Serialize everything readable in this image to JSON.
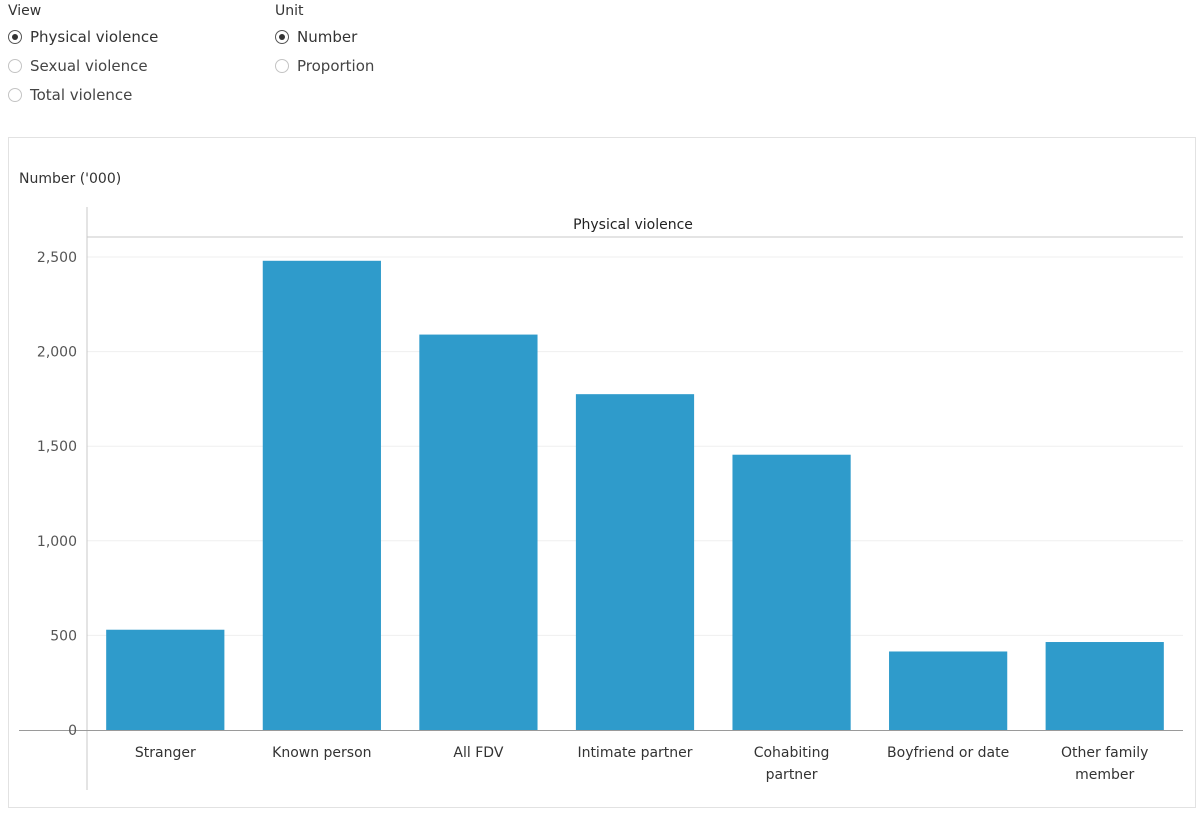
{
  "filters": {
    "view": {
      "title": "View",
      "options": [
        "Physical violence",
        "Sexual violence",
        "Total violence"
      ],
      "selected": 0
    },
    "unit": {
      "title": "Unit",
      "options": [
        "Number",
        "Proportion"
      ],
      "selected": 0
    }
  },
  "chart_data": {
    "type": "bar",
    "title": "",
    "header": "Physical violence",
    "ylabel": "Number ('000)",
    "xlabel": "",
    "categories": [
      [
        "Stranger"
      ],
      [
        "Known person"
      ],
      [
        "All FDV"
      ],
      [
        "Intimate partner"
      ],
      [
        "Cohabiting",
        "partner"
      ],
      [
        "Boyfriend or date"
      ],
      [
        "Other family",
        "member"
      ]
    ],
    "values": [
      530,
      2480,
      2090,
      1775,
      1455,
      415,
      465
    ],
    "ylim": [
      0,
      2500
    ],
    "yticks": [
      0,
      500,
      1000,
      1500,
      2000,
      2500
    ],
    "ytick_labels": [
      "0",
      "500",
      "1,000",
      "1,500",
      "2,000",
      "2,500"
    ],
    "bar_color": "#2f9bcb",
    "grid": true
  }
}
